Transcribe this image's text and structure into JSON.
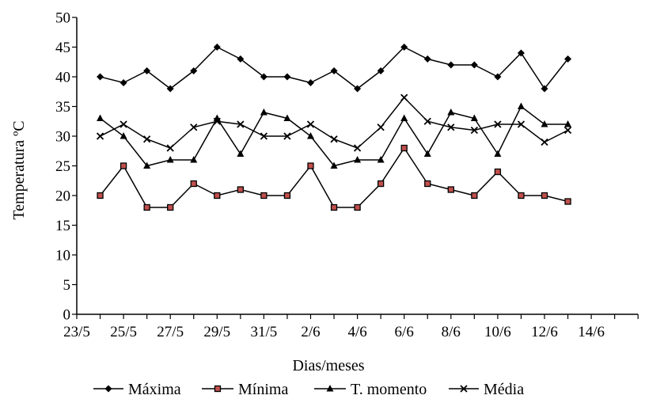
{
  "chart_data": {
    "type": "line",
    "xlabel": "Dias/meses",
    "ylabel": "Temperatura ºC",
    "ylim": [
      0,
      50
    ],
    "yticks": [
      0,
      5,
      10,
      15,
      20,
      25,
      30,
      35,
      40,
      45,
      50
    ],
    "x_tick_labels": [
      "23/5",
      "25/5",
      "27/5",
      "29/5",
      "31/5",
      "2/6",
      "4/6",
      "6/6",
      "8/6",
      "10/6",
      "12/6",
      "14/6"
    ],
    "x": [
      "24/5",
      "25/5",
      "26/5",
      "27/5",
      "28/5",
      "29/5",
      "30/5",
      "31/5",
      "1/6",
      "2/6",
      "3/6",
      "4/6",
      "5/6",
      "6/6",
      "7/6",
      "8/6",
      "9/6",
      "10/6",
      "11/6",
      "12/6",
      "13/6"
    ],
    "grid": false,
    "legend_position": "bottom",
    "series": [
      {
        "name": "Máxima",
        "marker": "diamond",
        "values": [
          40,
          39,
          41,
          38,
          41,
          45,
          43,
          40,
          40,
          39,
          41,
          38,
          41,
          45,
          43,
          42,
          42,
          40,
          44,
          38,
          43
        ]
      },
      {
        "name": "Mínima",
        "marker": "square",
        "values": [
          20,
          25,
          18,
          18,
          22,
          20,
          21,
          20,
          20,
          25,
          18,
          18,
          22,
          28,
          22,
          21,
          20,
          24,
          20,
          20,
          19
        ]
      },
      {
        "name": "T. momento",
        "marker": "triangle",
        "values": [
          33,
          30,
          25,
          26,
          26,
          33,
          27,
          34,
          33,
          30,
          25,
          26,
          26,
          33,
          27,
          34,
          33,
          27,
          35,
          32,
          32
        ]
      },
      {
        "name": "Média",
        "marker": "x",
        "values": [
          30,
          32,
          29.5,
          28,
          31.5,
          32.5,
          32,
          30,
          30,
          32,
          29.5,
          28,
          31.5,
          36.5,
          32.5,
          31.5,
          31,
          32,
          32,
          29,
          31
        ]
      }
    ]
  }
}
